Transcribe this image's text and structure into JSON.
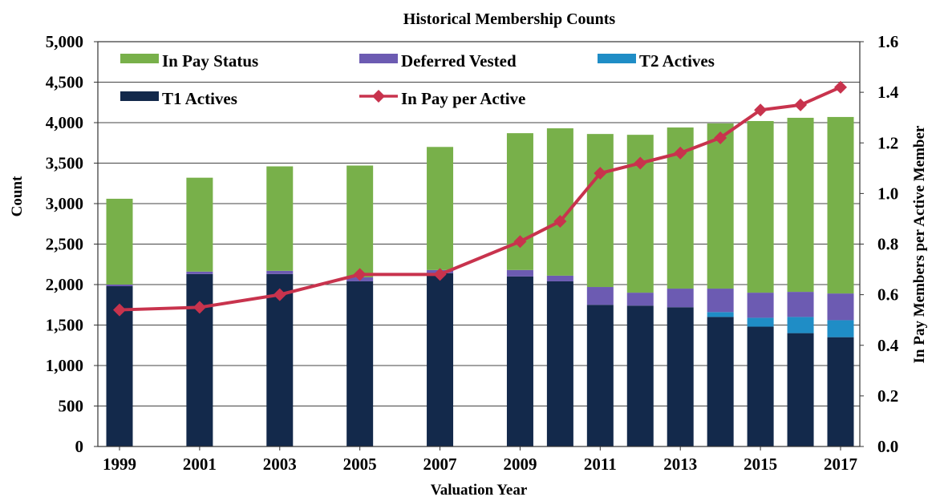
{
  "chart_data": {
    "type": "bar",
    "title": "Historical Membership Counts",
    "xlabel": "Valuation Year",
    "ylabel": "Count",
    "y2label": "In Pay Members per Active Member",
    "ylim": [
      0,
      5000
    ],
    "y2lim": [
      0,
      1.6
    ],
    "yticks": [
      "0",
      "500",
      "1,000",
      "1,500",
      "2,000",
      "2,500",
      "3,000",
      "3,500",
      "4,000",
      "4,500",
      "5,000"
    ],
    "y2ticks": [
      "0.0",
      "0.2",
      "0.4",
      "0.6",
      "0.8",
      "1.0",
      "1.2",
      "1.4",
      "1.6"
    ],
    "x": [
      1999,
      2001,
      2003,
      2005,
      2007,
      2009,
      2010,
      2011,
      2012,
      2013,
      2014,
      2015,
      2016,
      2017
    ],
    "xtick_labels": [
      "1999",
      "2001",
      "2003",
      "2005",
      "2007",
      "2009",
      "2011",
      "2013",
      "2015",
      "2017"
    ],
    "stacked": true,
    "grid": "horizontal",
    "legend_position": "top-inside",
    "series": [
      {
        "name": "T1 Actives",
        "kind": "bar",
        "color": "#13294b",
        "values": [
          1980,
          2130,
          2130,
          2040,
          2140,
          2100,
          2040,
          1750,
          1740,
          1720,
          1600,
          1480,
          1400,
          1350
        ]
      },
      {
        "name": "T2 Actives",
        "kind": "bar",
        "color": "#1f8dc6",
        "values": [
          0,
          0,
          0,
          0,
          0,
          0,
          0,
          0,
          0,
          0,
          60,
          110,
          200,
          210
        ]
      },
      {
        "name": "Deferred Vested",
        "kind": "bar",
        "color": "#6c5bb2",
        "values": [
          20,
          30,
          40,
          50,
          40,
          80,
          70,
          220,
          160,
          230,
          290,
          310,
          310,
          330
        ]
      },
      {
        "name": "In Pay Status",
        "kind": "bar",
        "color": "#78b04a",
        "values": [
          1060,
          1160,
          1290,
          1380,
          1520,
          1690,
          1820,
          1890,
          1950,
          1990,
          2040,
          2120,
          2150,
          2180
        ]
      },
      {
        "name": "In Pay per Active",
        "kind": "line",
        "axis": "right",
        "color": "#c8334d",
        "values": [
          0.54,
          0.55,
          0.6,
          0.68,
          0.68,
          0.81,
          0.89,
          1.08,
          1.12,
          1.16,
          1.22,
          1.33,
          1.35,
          1.42
        ]
      }
    ],
    "legend": {
      "row1": [
        "In Pay Status",
        "Deferred Vested",
        "T2 Actives"
      ],
      "row2": [
        "T1 Actives",
        "In Pay per Active"
      ]
    }
  }
}
